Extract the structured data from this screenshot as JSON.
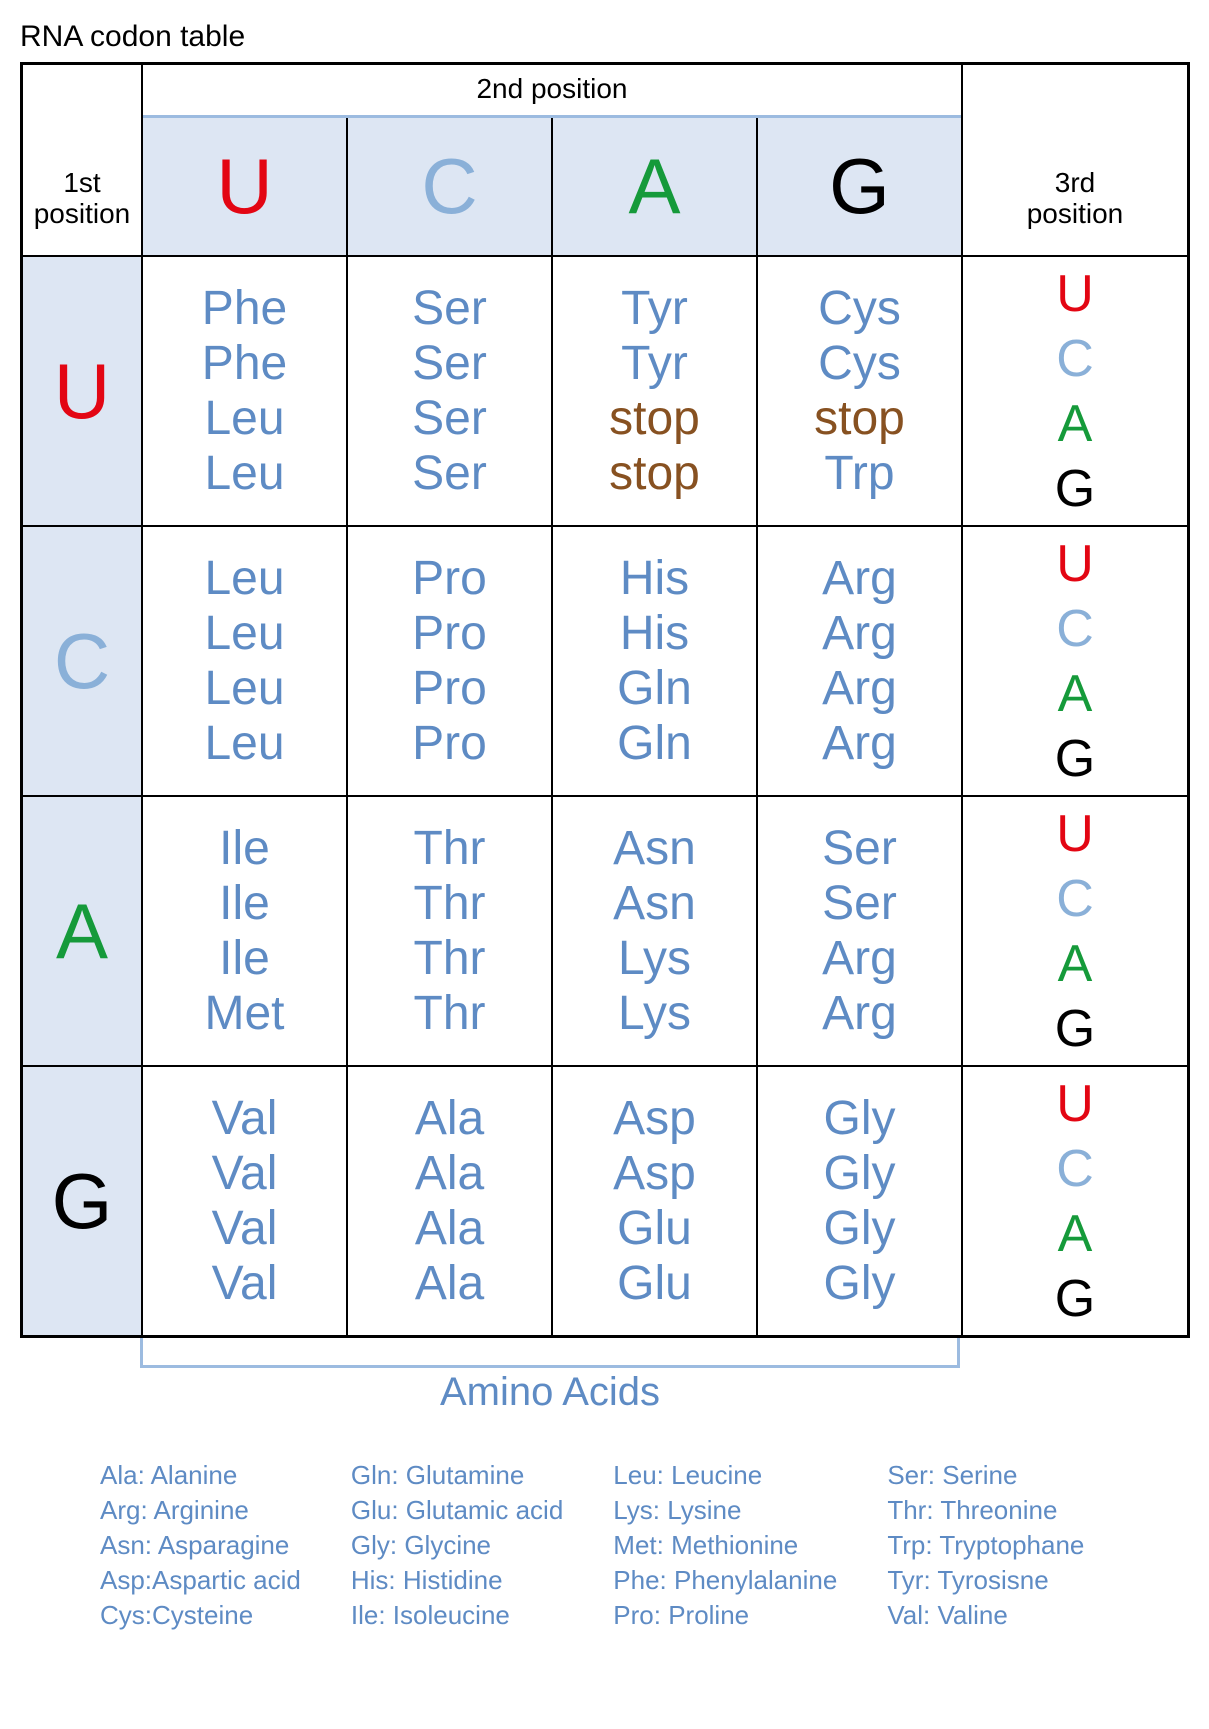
{
  "title": "RNA codon table",
  "labels": {
    "first": "1st\nposition",
    "second": "2nd position",
    "third": "3rd\nposition",
    "bracket": "Amino Acids"
  },
  "colors": {
    "U": "#e30613",
    "C": "#8ab0d8",
    "A": "#159a3a",
    "G": "#000000",
    "amino": "#5e8bc4",
    "stop": "#875121",
    "header_bg": "#dde6f3",
    "header_border": "#9cbbe0"
  },
  "bases": [
    "U",
    "C",
    "A",
    "G"
  ],
  "grid": [
    [
      [
        "Phe",
        "Phe",
        "Leu",
        "Leu"
      ],
      [
        "Ser",
        "Ser",
        "Ser",
        "Ser"
      ],
      [
        "Tyr",
        "Tyr",
        "stop",
        "stop"
      ],
      [
        "Cys",
        "Cys",
        "stop",
        "Trp"
      ]
    ],
    [
      [
        "Leu",
        "Leu",
        "Leu",
        "Leu"
      ],
      [
        "Pro",
        "Pro",
        "Pro",
        "Pro"
      ],
      [
        "His",
        "His",
        "Gln",
        "Gln"
      ],
      [
        "Arg",
        "Arg",
        "Arg",
        "Arg"
      ]
    ],
    [
      [
        "Ile",
        "Ile",
        "Ile",
        "Met"
      ],
      [
        "Thr",
        "Thr",
        "Thr",
        "Thr"
      ],
      [
        "Asn",
        "Asn",
        "Lys",
        "Lys"
      ],
      [
        "Ser",
        "Ser",
        "Arg",
        "Arg"
      ]
    ],
    [
      [
        "Val",
        "Val",
        "Val",
        "Val"
      ],
      [
        "Ala",
        "Ala",
        "Ala",
        "Ala"
      ],
      [
        "Asp",
        "Asp",
        "Glu",
        "Glu"
      ],
      [
        "Gly",
        "Gly",
        "Gly",
        "Gly"
      ]
    ]
  ],
  "legend": [
    [
      "Ala: Alanine",
      "Arg: Arginine",
      "Asn: Asparagine",
      "Asp:Aspartic acid",
      "Cys:Cysteine"
    ],
    [
      "Gln: Glutamine",
      "Glu: Glutamic acid",
      "Gly: Glycine",
      "His: Histidine",
      "Ile: Isoleucine"
    ],
    [
      "Leu: Leucine",
      "Lys: Lysine",
      "Met: Methionine",
      "Phe: Phenylalanine",
      "Pro: Proline"
    ],
    [
      "Ser: Serine",
      "Thr: Threonine",
      "Trp: Tryptophane",
      "Tyr: Tyrosisne",
      "Val: Valine"
    ]
  ],
  "fonts": {
    "title": 30,
    "position_label": 28,
    "header_base": 78,
    "first_base": 78,
    "cell": 48,
    "third_base": 52,
    "bracket": 40,
    "legend": 26
  }
}
